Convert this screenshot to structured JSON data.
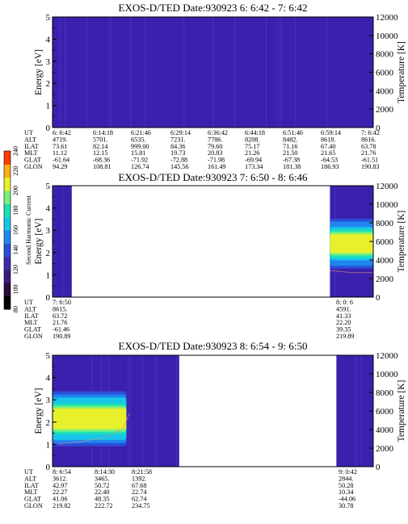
{
  "colors": {
    "background_level": "#3b20ad",
    "heat_scale": [
      "#000000",
      "#2a0a3a",
      "#3a1a7a",
      "#3e2aa8",
      "#2a4fd8",
      "#1f86ef",
      "#17c6e8",
      "#1fe0b4",
      "#7df07a",
      "#e8f02c",
      "#ffae17",
      "#ff3b00"
    ],
    "temperature_trace": "#e08a8a"
  },
  "chart_data": [
    {
      "type": "heatmap",
      "title": "EXOS-D/TED   Date:930923  6: 6:42 - 7: 6:42",
      "ylabel": "Energy [eV]",
      "y2label": "Temperature [K]",
      "ylim": [
        0,
        5
      ],
      "y2lim": [
        0,
        12000
      ],
      "y_ticks": [
        "0",
        "1",
        "2",
        "3",
        "4",
        "5"
      ],
      "y2_ticks": [
        "0",
        "2000",
        "4000",
        "6000",
        "8000",
        "10000",
        "12000"
      ],
      "data_coverage": [
        [
          0.0,
          1.0
        ]
      ],
      "features": [],
      "table": {
        "row_labels": [
          "UT",
          "ALT",
          "ILAT",
          "MLT",
          "GLAT",
          "GLON"
        ],
        "columns": [
          [
            "6: 6:42",
            "4719.",
            "73.61",
            "11.12",
            "-61.64",
            "94.29"
          ],
          [
            "6:14:18",
            "5701.",
            "82.14",
            "12.15",
            "-68.36",
            "108.81"
          ],
          [
            "6:21:46",
            "6535.",
            "999.00",
            "15.81",
            "-71.92",
            "126.74"
          ],
          [
            "6:29:14",
            "7231.",
            "84.36",
            "19.73",
            "-72.88",
            "145.56"
          ],
          [
            "6:36:42",
            "7786.",
            "79.60",
            "20.83",
            "-71.98",
            "161.49"
          ],
          [
            "6:44:18",
            "8208.",
            "75.17",
            "21.26",
            "-69.94",
            "173.34"
          ],
          [
            "6:51:46",
            "8482.",
            "71.16",
            "21.50",
            "-67.38",
            "181.38"
          ],
          [
            "6:59:14",
            "8618.",
            "67.40",
            "21.65",
            "-64.53",
            "186.93"
          ],
          [
            "7: 6:42",
            "8616.",
            "63.78",
            "21.76",
            "-61.51",
            "190.83"
          ]
        ]
      }
    },
    {
      "type": "heatmap",
      "title": "EXOS-D/TED   Date:930923  7: 6:50 - 8: 6:46",
      "ylabel": "Energy [eV]",
      "y2label": "Temperature [K]",
      "ylim": [
        0,
        5
      ],
      "y2lim": [
        0,
        12000
      ],
      "y_ticks": [
        "0",
        "1",
        "2",
        "3",
        "4",
        "5"
      ],
      "y2_ticks": [
        "0",
        "2000",
        "4000",
        "6000",
        "8000",
        "10000",
        "12000"
      ],
      "data_coverage": [
        [
          0.0,
          0.06
        ],
        [
          0.865,
          1.0
        ]
      ],
      "features": [
        {
          "x_range": [
            0.865,
            1.0
          ],
          "energy_center": 2.4,
          "energy_halfwidth": 0.5,
          "peak_level": 0.72
        }
      ],
      "temperature_trace": [
        [
          0.865,
          1.2
        ],
        [
          0.93,
          1.1
        ],
        [
          1.0,
          1.1
        ]
      ],
      "table": {
        "row_labels": [
          "UT",
          "ALT",
          "ILAT",
          "MLT",
          "GLAT",
          "GLON"
        ],
        "columns": [
          [
            "7: 6:50",
            "8615.",
            "63.72",
            "21.76",
            "-61.46",
            "190.89"
          ],
          [
            "8: 0: 6",
            "4591.",
            "41.33",
            "22.20",
            "39.35",
            "219.89"
          ]
        ]
      },
      "colorbar": {
        "label": "Second Harmonic Current",
        "ticks": [
          "80",
          "100",
          "120",
          "140",
          "160",
          "180",
          "200",
          "220",
          "240"
        ]
      }
    },
    {
      "type": "heatmap",
      "title": "EXOS-D/TED   Date:930923  8: 6:54 - 9: 6:50",
      "ylabel": "Energy [eV]",
      "y2label": "Temperature [K]",
      "ylim": [
        0,
        5
      ],
      "y2lim": [
        0,
        12000
      ],
      "y_ticks": [
        "0",
        "1",
        "2",
        "3",
        "4",
        "5"
      ],
      "y2_ticks": [
        "0",
        "2000",
        "4000",
        "6000",
        "8000",
        "10000",
        "12000"
      ],
      "data_coverage": [
        [
          0.0,
          0.395
        ],
        [
          0.885,
          1.0
        ]
      ],
      "features": [
        {
          "x_range": [
            0.0,
            0.23
          ],
          "energy_center": 2.15,
          "energy_halfwidth": 0.55,
          "peak_level": 0.78
        }
      ],
      "temperature_trace": [
        [
          0.0,
          1.0
        ],
        [
          0.08,
          1.1
        ],
        [
          0.16,
          1.3
        ],
        [
          0.22,
          1.7
        ],
        [
          0.24,
          2.4
        ]
      ],
      "table": {
        "row_labels": [
          "UT",
          "ALT",
          "ILAT",
          "MLT",
          "GLAT",
          "GLON"
        ],
        "columns": [
          [
            "8: 6:54",
            "3612.",
            "42.97",
            "22.27",
            "41.06",
            "219.82"
          ],
          [
            "8:14:30",
            "3465.",
            "50.72",
            "22.40",
            "48.35",
            "222.72"
          ],
          [
            "8:21:58",
            "1392.",
            "67.68",
            "22.74",
            "62.74",
            "234.75"
          ],
          [
            "9: 0:42",
            "2844.",
            "50.28",
            "10.34",
            "-44.06",
            "30.78"
          ]
        ]
      }
    }
  ]
}
